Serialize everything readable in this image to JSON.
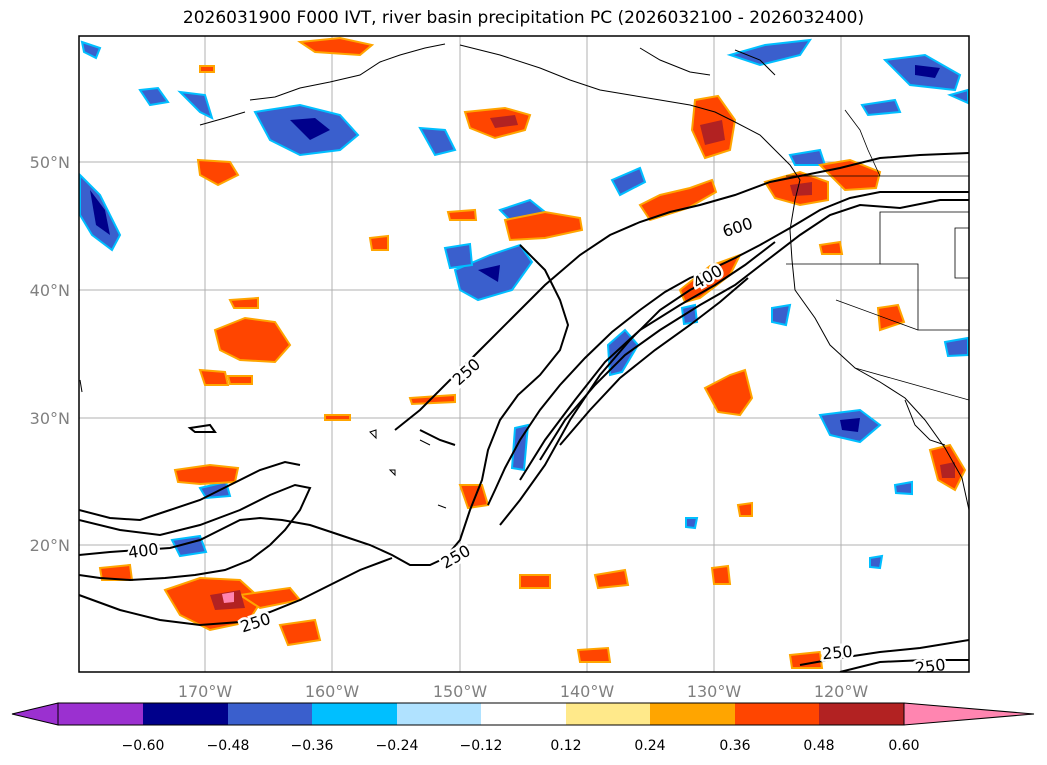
{
  "title": "2026031900 F000 IVT, river basin precipitation PC (2026032100 - 2026032400)",
  "lat_labels": [
    "50°N",
    "40°N",
    "30°N",
    "20°N"
  ],
  "lon_labels": [
    "170°W",
    "160°W",
    "150°W",
    "140°W",
    "130°W",
    "120°W"
  ],
  "ivt_contour_labels": [
    "600",
    "400",
    "250",
    "400",
    "250",
    "250",
    "250",
    "250"
  ],
  "colorbar": {
    "ticks": [
      "−0.60",
      "−0.48",
      "−0.36",
      "−0.24",
      "−0.12",
      "0.12",
      "0.24",
      "0.36",
      "0.48",
      "0.60"
    ],
    "colors": [
      "#9b30d0",
      "#00008b",
      "#3a5fcd",
      "#00bfff",
      "#b0e2ff",
      "#ffffff",
      "#ffe98a",
      "#ffa500",
      "#ff4500",
      "#b22222",
      "#ff85b0"
    ]
  },
  "colors": {
    "positive": "#ff4500",
    "positive_edge": "#ffa500",
    "strong_positive": "#b22222",
    "negative": "#3a5fcd",
    "negative_edge": "#00bfff",
    "strong_negative": "#00008b"
  }
}
